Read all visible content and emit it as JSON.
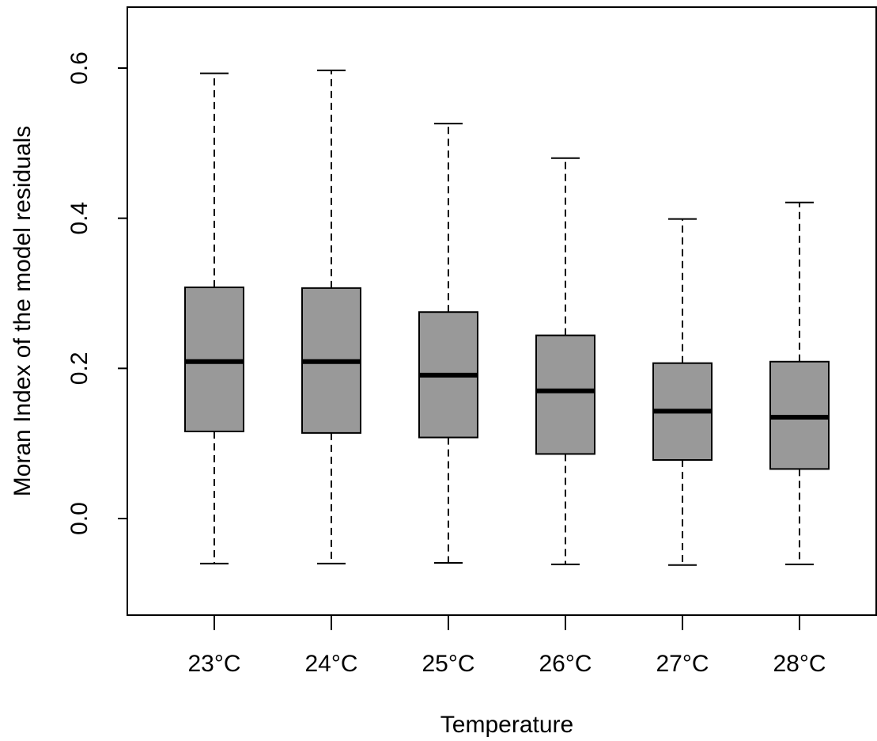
{
  "chart_data": {
    "type": "boxplot",
    "xlabel": "Temperature",
    "ylabel": "Moran Index of the model residuals",
    "categories": [
      "23°C",
      "24°C",
      "25°C",
      "26°C",
      "27°C",
      "28°C"
    ],
    "y_ticks": [
      0.0,
      0.2,
      0.4,
      0.6
    ],
    "y_tick_labels": [
      "0.0",
      "0.2",
      "0.4",
      "0.6"
    ],
    "ylim": [
      -0.13,
      0.68
    ],
    "grid": false,
    "box_fill": "#999999",
    "boxes": [
      {
        "category": "23°C",
        "min": -0.06,
        "q1": 0.116,
        "median": 0.209,
        "q3": 0.308,
        "max": 0.593
      },
      {
        "category": "24°C",
        "min": -0.06,
        "q1": 0.114,
        "median": 0.209,
        "q3": 0.307,
        "max": 0.597
      },
      {
        "category": "25°C",
        "min": -0.059,
        "q1": 0.108,
        "median": 0.191,
        "q3": 0.275,
        "max": 0.526
      },
      {
        "category": "26°C",
        "min": -0.061,
        "q1": 0.086,
        "median": 0.17,
        "q3": 0.244,
        "max": 0.48
      },
      {
        "category": "27°C",
        "min": -0.062,
        "q1": 0.078,
        "median": 0.143,
        "q3": 0.207,
        "max": 0.399
      },
      {
        "category": "28°C",
        "min": -0.061,
        "q1": 0.066,
        "median": 0.135,
        "q3": 0.209,
        "max": 0.421
      }
    ]
  }
}
